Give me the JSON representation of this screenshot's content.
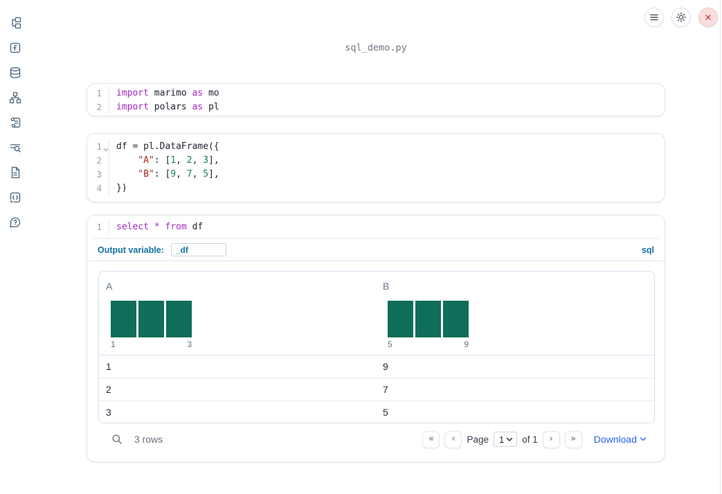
{
  "window": {
    "title": "sql_demo.py"
  },
  "colors": {
    "keyword": "#a42ac0",
    "string": "#a82c21",
    "number": "#1b7f4d",
    "histogram_bar": "#0e6e5a",
    "accent_blue": "#1271a5",
    "link_blue": "#2563eb",
    "sidebar_icon": "#44617c",
    "close_red": "#cf4444"
  },
  "sidebar": {
    "items": [
      {
        "icon": "file-explorer-icon"
      },
      {
        "icon": "variables-icon"
      },
      {
        "icon": "datasources-icon"
      },
      {
        "icon": "dependencies-icon"
      },
      {
        "icon": "scratchpad-icon"
      },
      {
        "icon": "logs-icon"
      },
      {
        "icon": "documentation-icon"
      },
      {
        "icon": "snippets-icon"
      },
      {
        "icon": "help-icon"
      }
    ]
  },
  "header": {
    "buttons": [
      "menu",
      "settings",
      "close"
    ]
  },
  "cells": [
    {
      "name": "imports-cell",
      "lines": [
        {
          "n": "1",
          "tokens": [
            [
              "kw",
              "import"
            ],
            [
              "pl",
              " marimo "
            ],
            [
              "kw",
              "as"
            ],
            [
              "pl",
              " mo"
            ]
          ]
        },
        {
          "n": "2",
          "tokens": [
            [
              "kw",
              "import"
            ],
            [
              "pl",
              " polars "
            ],
            [
              "kw",
              "as"
            ],
            [
              "pl",
              " pl"
            ]
          ]
        }
      ]
    },
    {
      "name": "dataframe-cell",
      "lines": [
        {
          "n": "1",
          "fold": true,
          "tokens": [
            [
              "pl",
              "df = pl.DataFrame({"
            ]
          ]
        },
        {
          "n": "2",
          "tokens": [
            [
              "pl",
              "    "
            ],
            [
              "str",
              "\"A\""
            ],
            [
              "pl",
              ": ["
            ],
            [
              "num",
              "1"
            ],
            [
              "pl",
              ", "
            ],
            [
              "num",
              "2"
            ],
            [
              "pl",
              ", "
            ],
            [
              "num",
              "3"
            ],
            [
              "pl",
              "],"
            ]
          ]
        },
        {
          "n": "3",
          "tokens": [
            [
              "pl",
              "    "
            ],
            [
              "str",
              "\"B\""
            ],
            [
              "pl",
              ": ["
            ],
            [
              "num",
              "9"
            ],
            [
              "pl",
              ", "
            ],
            [
              "num",
              "7"
            ],
            [
              "pl",
              ", "
            ],
            [
              "num",
              "5"
            ],
            [
              "pl",
              "],"
            ]
          ]
        },
        {
          "n": "4",
          "tokens": [
            [
              "pl",
              "})"
            ]
          ]
        }
      ]
    },
    {
      "name": "sql-cell",
      "lines": [
        {
          "n": "1",
          "tokens": [
            [
              "kw",
              "select"
            ],
            [
              "pl",
              " "
            ],
            [
              "kw",
              "*"
            ],
            [
              "pl",
              " "
            ],
            [
              "kw",
              "from"
            ],
            [
              "pl",
              " df"
            ]
          ]
        }
      ]
    }
  ],
  "sql_cell": {
    "output_variable_label": "Output variable:",
    "output_variable_value": "_df",
    "language_label": "sql"
  },
  "table": {
    "columns": [
      {
        "name": "A",
        "histogram": {
          "bar_values": [
            1,
            1,
            1
          ],
          "min_label": "1",
          "max_label": "3"
        }
      },
      {
        "name": "B",
        "histogram": {
          "bar_values": [
            1,
            1,
            1
          ],
          "min_label": "5",
          "max_label": "9"
        }
      }
    ],
    "rows": [
      [
        "1",
        "9"
      ],
      [
        "2",
        "7"
      ],
      [
        "3",
        "5"
      ]
    ],
    "footer": {
      "row_count": "3 rows",
      "page_label": "Page",
      "page_value": "1",
      "of_label": "of 1",
      "download_label": "Download",
      "pagination": {
        "first": "«",
        "prev": "‹",
        "next": "›",
        "last": "»"
      }
    }
  }
}
